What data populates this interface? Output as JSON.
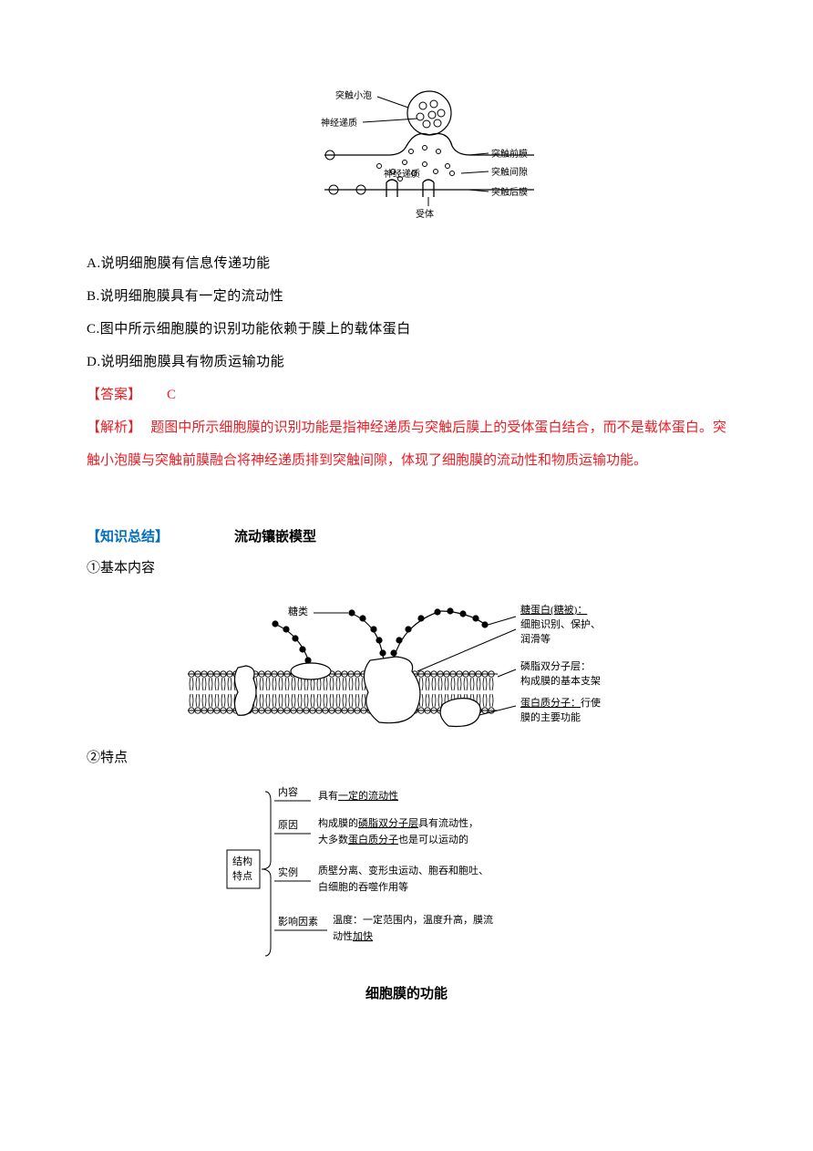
{
  "synapse_diagram": {
    "labels": {
      "vesicle": "突触小泡",
      "neurotrans_top": "神经递质",
      "neurotrans_mid": "神经递质",
      "pre_membrane": "突触前膜",
      "cleft": "突触间隙",
      "post_membrane": "突触后膜",
      "receptor": "受体"
    },
    "line_color": "#000000",
    "bg": "#ffffff"
  },
  "options": {
    "a": "A.说明细胞膜有信息传递功能",
    "b": "B.说明细胞膜具有一定的流动性",
    "c": "C.图中所示细胞膜的识别功能依赖于膜上的载体蛋白",
    "d": "D.说明细胞膜具有物质运输功能"
  },
  "answer": {
    "label": "【答案】",
    "value": "C",
    "color": "#ed1c24"
  },
  "explain": {
    "label": "【解析】",
    "text": "题图中所示细胞膜的识别功能是指神经递质与突触后膜上的受体蛋白结合，而不是载体蛋白。突触小泡膜与突触前膜融合将神经递质排到突触间隙，体现了细胞膜的流动性和物质运输功能。",
    "color": "#ed1c24"
  },
  "knowledge": {
    "label": "【知识总结】",
    "title": "流动镶嵌模型",
    "label_color": "#0070c0"
  },
  "sub1": "①基本内容",
  "membrane_diagram": {
    "labels": {
      "sugar": "糖类",
      "glycoprotein_title": "糖蛋白(糖被)：",
      "glycoprotein_desc1": "细胞识别、保护、",
      "glycoprotein_desc2": "润滑等",
      "bilayer_title": "磷脂双分子层：",
      "bilayer_desc": "构成膜的基本支架",
      "protein_title": "蛋白质分子：",
      "protein_suffix": "行使",
      "protein_desc": "膜的主要功能"
    },
    "colors": {
      "line": "#000000",
      "dot": "#000000"
    }
  },
  "sub2": "②特点",
  "feature_diagram": {
    "box": "结构\n特点",
    "branches": [
      {
        "label": "内容",
        "line1": "具有",
        "u1": "一定的流动性",
        "line2": ""
      },
      {
        "label": "原因",
        "line1": "构成膜的",
        "u1": "磷脂双分子层",
        "line1b": "具有流动性，",
        "line2": "大多数",
        "u2": "蛋白质分子",
        "line2b": "也是可以运动的"
      },
      {
        "label": "实例",
        "line1": "质壁分离、变形虫运动、胞吞和胞吐、",
        "line2": "白细胞的吞噬作用等"
      },
      {
        "label": "影响因素",
        "line1": "温度：一定范围内，温度升高，膜流",
        "line2": "动性",
        "u2": "加快"
      }
    ]
  },
  "bottom_title": "细胞膜的功能"
}
